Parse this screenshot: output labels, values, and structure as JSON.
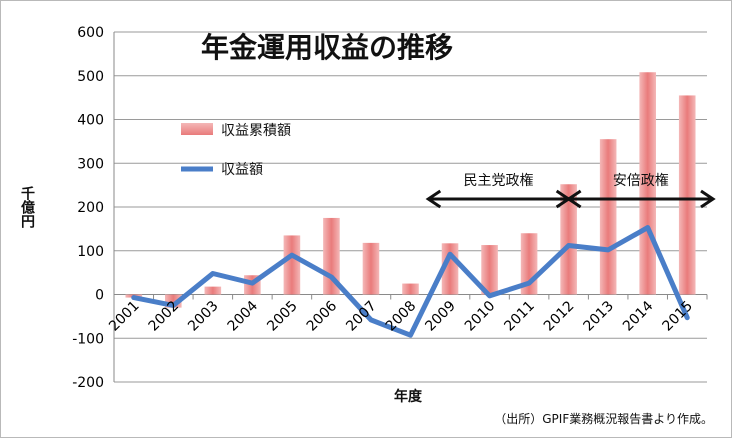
{
  "chart_data": {
    "type": "bar",
    "title": "年金運用収益の推移",
    "xlabel": "年度",
    "ylabel": "千億円",
    "ylim": [
      -200,
      600
    ],
    "yticks": [
      -200,
      -100,
      0,
      100,
      200,
      300,
      400,
      500,
      600
    ],
    "grid": true,
    "legend_position": "top-left",
    "categories": [
      "2001",
      "2002",
      "2003",
      "2004",
      "2005",
      "2006",
      "2007",
      "2008",
      "2009",
      "2010",
      "2011",
      "2012",
      "2013",
      "2014",
      "2015"
    ],
    "series": [
      {
        "name": "収益累積額",
        "kind": "bar",
        "color": "#e87c7c",
        "values": [
          -7,
          -30,
          18,
          44,
          135,
          175,
          118,
          25,
          117,
          113,
          140,
          252,
          355,
          508,
          455
        ]
      },
      {
        "name": "収益額",
        "kind": "line",
        "color": "#4a7ec8",
        "values": [
          -7,
          -25,
          48,
          26,
          90,
          40,
          -58,
          -93,
          92,
          -3,
          26,
          112,
          102,
          153,
          -53
        ]
      }
    ],
    "periods": [
      {
        "label": "民主党政権",
        "start": "2009",
        "end": "2012"
      },
      {
        "label": "安倍政権",
        "start": "2012",
        "end": "2015"
      }
    ],
    "note": "（出所）GPIF業務概況報告書より作成。"
  }
}
